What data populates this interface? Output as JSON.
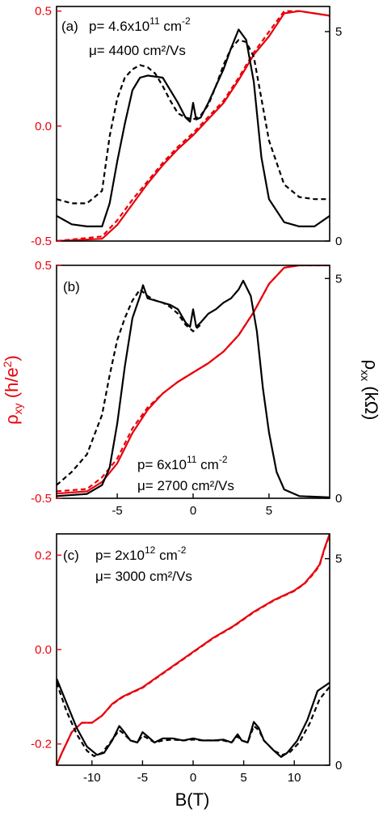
{
  "figure": {
    "colors": {
      "rho_xy": "#e8000b",
      "rho_xx": "#000000"
    },
    "left_axis_label": {
      "main": "ρ",
      "sub": "xy",
      "rest": " (h/e",
      "sup": "2",
      "close": ")"
    },
    "right_axis_label": {
      "main": "ρ",
      "sub": "xx",
      "rest": " (kΩ)"
    },
    "x_axis_label": "B(T)"
  },
  "chart_data": [
    {
      "type": "line",
      "panel": "(a)",
      "annotation": {
        "p_prefix": "p= 4.6x10",
        "p_exp": "11",
        "p_unit": " cm",
        "p_unit_exp": "-2",
        "mu": "μ= 4400  cm²/Vs"
      },
      "xlim": [
        -9,
        9
      ],
      "ylim_left": [
        -0.5,
        0.52
      ],
      "ylim_right": [
        0,
        5.6
      ],
      "yticks_left": [
        {
          "v": -0.5,
          "label": "-0.5"
        },
        {
          "v": 0.0,
          "label": "0.0"
        },
        {
          "v": 0.5,
          "label": "0.5"
        }
      ],
      "yticks_right": [
        {
          "v": 0,
          "label": "0"
        },
        {
          "v": 5,
          "label": "5"
        }
      ],
      "show_xtick_labels": false,
      "series": [
        {
          "id": "rxy_solid",
          "axis": "left",
          "style": "solid",
          "color": "#e8000b",
          "x": [
            -9,
            -6,
            -5,
            -4,
            -3,
            -2,
            -1,
            0,
            1,
            2,
            3,
            4,
            5,
            6,
            7,
            8,
            9
          ],
          "y": [
            -0.5,
            -0.49,
            -0.43,
            -0.34,
            -0.25,
            -0.17,
            -0.1,
            -0.04,
            0.03,
            0.1,
            0.2,
            0.31,
            0.39,
            0.49,
            0.5,
            0.49,
            0.48
          ]
        },
        {
          "id": "rxy_dashed",
          "axis": "left",
          "style": "dashed",
          "color": "#e8000b",
          "x": [
            -9,
            -6,
            -5,
            -4,
            -3,
            -2,
            -1,
            0,
            1,
            2,
            3,
            4,
            5,
            6,
            7,
            8,
            9
          ],
          "y": [
            -0.5,
            -0.48,
            -0.41,
            -0.32,
            -0.24,
            -0.16,
            -0.09,
            -0.03,
            0.04,
            0.11,
            0.21,
            0.32,
            0.41,
            0.5,
            0.5,
            0.49,
            0.48
          ]
        },
        {
          "id": "rxx_solid",
          "axis": "right",
          "style": "solid",
          "color": "#000000",
          "x": [
            -9,
            -8,
            -7,
            -6,
            -5.5,
            -5,
            -4.5,
            -4,
            -3.5,
            -3,
            -2,
            -1.5,
            -1,
            -0.5,
            -0.2,
            0,
            0.2,
            0.5,
            1,
            2,
            2.5,
            3,
            3.5,
            4,
            4.5,
            5,
            6,
            7,
            8,
            9
          ],
          "y": [
            0.6,
            0.4,
            0.35,
            0.35,
            0.9,
            1.9,
            2.8,
            3.6,
            3.9,
            3.95,
            3.9,
            3.6,
            3.3,
            2.95,
            2.85,
            3.3,
            2.9,
            2.95,
            3.3,
            4.1,
            4.6,
            5.05,
            4.8,
            3.8,
            2.0,
            1.0,
            0.45,
            0.35,
            0.35,
            0.6
          ]
        },
        {
          "id": "rxx_dashed",
          "axis": "right",
          "style": "dashed",
          "color": "#000000",
          "x": [
            -9,
            -8,
            -7,
            -6,
            -5.5,
            -5,
            -4.5,
            -4,
            -3.5,
            -3,
            -2.5,
            -2,
            -1.5,
            -1,
            -0.5,
            0,
            0.5,
            1,
            1.5,
            2,
            2.5,
            3,
            3.5,
            4,
            4.5,
            5,
            6,
            7,
            8,
            9
          ],
          "y": [
            1.0,
            0.9,
            0.9,
            1.2,
            2.5,
            3.4,
            3.9,
            4.1,
            4.2,
            4.15,
            4.0,
            3.7,
            3.35,
            3.05,
            2.95,
            2.9,
            3.0,
            3.25,
            3.7,
            4.2,
            4.6,
            4.8,
            4.75,
            4.4,
            3.4,
            2.4,
            1.35,
            1.05,
            1.0,
            1.0
          ]
        }
      ]
    },
    {
      "type": "line",
      "panel": "(b)",
      "annotation": {
        "p_prefix": "p= 6x10",
        "p_exp": "11",
        "p_unit": " cm",
        "p_unit_exp": "-2",
        "mu": "μ= 2700  cm²/Vs"
      },
      "xlim": [
        -9,
        9
      ],
      "ylim_left": [
        -0.5,
        0.5
      ],
      "ylim_right": [
        0,
        5.3
      ],
      "yticks_left": [
        {
          "v": -0.5,
          "label": "-0.5"
        },
        {
          "v": 0.5,
          "label": "0.5"
        }
      ],
      "yticks_right": [
        {
          "v": 0,
          "label": "0"
        },
        {
          "v": 5,
          "label": "5"
        }
      ],
      "xticks": [
        {
          "v": -5,
          "label": "-5"
        },
        {
          "v": 0,
          "label": "0"
        },
        {
          "v": 5,
          "label": "5"
        }
      ],
      "show_xtick_labels": true,
      "series": [
        {
          "id": "rxy_solid",
          "axis": "left",
          "style": "solid",
          "color": "#e8000b",
          "x": [
            -9,
            -7,
            -6,
            -5,
            -4,
            -3,
            -2,
            -1,
            0,
            1,
            2,
            3,
            4,
            5,
            6,
            7,
            8,
            9
          ],
          "y": [
            -0.48,
            -0.47,
            -0.43,
            -0.35,
            -0.22,
            -0.12,
            -0.05,
            0.0,
            0.04,
            0.08,
            0.13,
            0.2,
            0.3,
            0.42,
            0.49,
            0.5,
            0.5,
            0.5
          ]
        },
        {
          "id": "rxy_dashed",
          "axis": "left",
          "style": "dashed",
          "color": "#e8000b",
          "x": [
            -9,
            -7,
            -6,
            -5,
            -4,
            -3,
            -2,
            -1,
            0,
            1,
            2,
            3,
            4,
            5,
            6,
            7,
            8,
            9
          ],
          "y": [
            -0.47,
            -0.46,
            -0.41,
            -0.33,
            -0.2,
            -0.11,
            -0.05,
            0.0,
            0.04,
            0.08,
            0.13,
            0.2,
            0.3,
            0.42,
            0.49,
            0.5,
            0.5,
            0.5
          ]
        },
        {
          "id": "rxx_solid",
          "axis": "right",
          "style": "solid",
          "color": "#000000",
          "x": [
            -9,
            -7,
            -6,
            -5.5,
            -5,
            -4.5,
            -4,
            -3.5,
            -3.3,
            -3,
            -2.5,
            -2,
            -1.5,
            -1,
            -0.5,
            -0.2,
            0,
            0.2,
            0.5,
            1,
            1.5,
            2,
            2.5,
            3,
            3.3,
            3.8,
            4.2,
            4.6,
            5,
            5.5,
            6,
            7,
            9
          ],
          "y": [
            0.05,
            0.1,
            0.3,
            0.7,
            1.7,
            3.0,
            4.1,
            4.6,
            4.85,
            4.55,
            4.5,
            4.45,
            4.4,
            4.3,
            4.0,
            3.9,
            4.3,
            3.9,
            4.0,
            4.2,
            4.3,
            4.45,
            4.55,
            4.75,
            4.95,
            4.6,
            3.8,
            2.5,
            1.5,
            0.6,
            0.2,
            0.05,
            0.02
          ]
        },
        {
          "id": "rxx_dashed",
          "axis": "right",
          "style": "dashed",
          "color": "#000000",
          "x": [
            -9,
            -8,
            -7,
            -6,
            -5.5,
            -5,
            -4.5,
            -4,
            -3.5,
            -3,
            -2.5,
            -2,
            -1.5,
            -1,
            -0.5,
            0,
            0.5
          ],
          "y": [
            0.3,
            0.6,
            1.0,
            1.9,
            2.8,
            3.6,
            4.1,
            4.5,
            4.75,
            4.6,
            4.5,
            4.45,
            4.35,
            4.2,
            3.95,
            3.8,
            3.95
          ]
        }
      ]
    },
    {
      "type": "line",
      "panel": "(c)",
      "annotation": {
        "p_prefix": "p= 2x10",
        "p_exp": "12",
        "p_unit": " cm",
        "p_unit_exp": "-2",
        "mu": "μ= 3000  cm²/Vs"
      },
      "xlim": [
        -13.5,
        13.5
      ],
      "ylim_left": [
        -0.245,
        0.245
      ],
      "ylim_right": [
        0,
        5.6
      ],
      "yticks_left": [
        {
          "v": -0.2,
          "label": "-0.2"
        },
        {
          "v": 0.0,
          "label": "0.0"
        },
        {
          "v": 0.2,
          "label": "0.2"
        }
      ],
      "yticks_right": [
        {
          "v": 0,
          "label": "0"
        },
        {
          "v": 5,
          "label": "5"
        }
      ],
      "xticks": [
        {
          "v": -10,
          "label": "-10"
        },
        {
          "v": -5,
          "label": "-5"
        },
        {
          "v": 0,
          "label": "0"
        },
        {
          "v": 5,
          "label": "5"
        },
        {
          "v": 10,
          "label": "10"
        }
      ],
      "show_xtick_labels": true,
      "series": [
        {
          "id": "rxy_solid",
          "axis": "left",
          "style": "solid",
          "color": "#e8000b",
          "x": [
            -13.5,
            -13,
            -12,
            -11,
            -10,
            -9,
            -8,
            -7,
            -6,
            -5,
            -4,
            -2,
            0,
            2,
            4,
            6,
            8,
            9,
            10,
            11,
            12,
            12.5,
            13,
            13.5
          ],
          "y": [
            -0.245,
            -0.22,
            -0.175,
            -0.155,
            -0.155,
            -0.14,
            -0.115,
            -0.1,
            -0.09,
            -0.08,
            -0.065,
            -0.035,
            -0.005,
            0.025,
            0.05,
            0.08,
            0.105,
            0.115,
            0.125,
            0.14,
            0.165,
            0.18,
            0.215,
            0.245
          ]
        },
        {
          "id": "rxy_dashed",
          "axis": "left",
          "style": "dashed",
          "color": "#e8000b",
          "x": [
            -13.5,
            -13,
            -12,
            -11,
            -10,
            -9,
            -8,
            -7,
            -6,
            -5,
            -4,
            -2,
            0,
            2,
            4,
            6,
            8,
            9,
            10,
            11,
            12,
            12.5,
            13,
            13.5
          ],
          "y": [
            -0.245,
            -0.22,
            -0.175,
            -0.155,
            -0.155,
            -0.14,
            -0.116,
            -0.101,
            -0.091,
            -0.081,
            -0.066,
            -0.036,
            -0.006,
            0.024,
            0.049,
            0.079,
            0.104,
            0.114,
            0.124,
            0.139,
            0.163,
            0.178,
            0.213,
            0.243
          ]
        },
        {
          "id": "rxx_solid",
          "axis": "right",
          "style": "solid",
          "color": "#000000",
          "x": [
            -13.5,
            -12.5,
            -11.5,
            -10.5,
            -9.5,
            -8.8,
            -8,
            -7.3,
            -6.8,
            -6.2,
            -5.5,
            -5,
            -4.5,
            -3.8,
            -3,
            -2,
            -1,
            0,
            1,
            2,
            3,
            3.8,
            4.4,
            4.8,
            5.4,
            6,
            6.5,
            7,
            8,
            8.7,
            9.3,
            10.3,
            11.3,
            12.3,
            13.5
          ],
          "y": [
            2.1,
            1.5,
            0.9,
            0.45,
            0.25,
            0.3,
            0.6,
            0.95,
            0.8,
            0.6,
            0.55,
            0.8,
            0.7,
            0.55,
            0.65,
            0.65,
            0.6,
            0.65,
            0.6,
            0.6,
            0.62,
            0.55,
            0.75,
            0.6,
            0.55,
            1.05,
            0.9,
            0.6,
            0.35,
            0.2,
            0.3,
            0.6,
            1.1,
            1.8,
            2.0
          ]
        },
        {
          "id": "rxx_dashed",
          "axis": "right",
          "style": "dashed",
          "color": "#000000",
          "x": [
            -13.5,
            -12.5,
            -11.5,
            -10.5,
            -9.8,
            -9,
            -8.2,
            -7.3,
            -6.8,
            -6.2,
            -5.5,
            -5,
            -4.5,
            -3.8,
            -3,
            -2,
            -1,
            0,
            1,
            2,
            3,
            3.8,
            4.4,
            4.8,
            5.4,
            6,
            6.5,
            7,
            8,
            8.8,
            9.5,
            10.5,
            11.5,
            12.5,
            13.5
          ],
          "y": [
            2.0,
            1.3,
            0.75,
            0.35,
            0.22,
            0.3,
            0.55,
            0.85,
            0.75,
            0.6,
            0.55,
            0.72,
            0.65,
            0.55,
            0.6,
            0.62,
            0.6,
            0.62,
            0.6,
            0.6,
            0.6,
            0.55,
            0.7,
            0.6,
            0.55,
            0.95,
            0.85,
            0.6,
            0.35,
            0.25,
            0.3,
            0.55,
            1.0,
            1.6,
            1.9
          ]
        }
      ]
    }
  ]
}
